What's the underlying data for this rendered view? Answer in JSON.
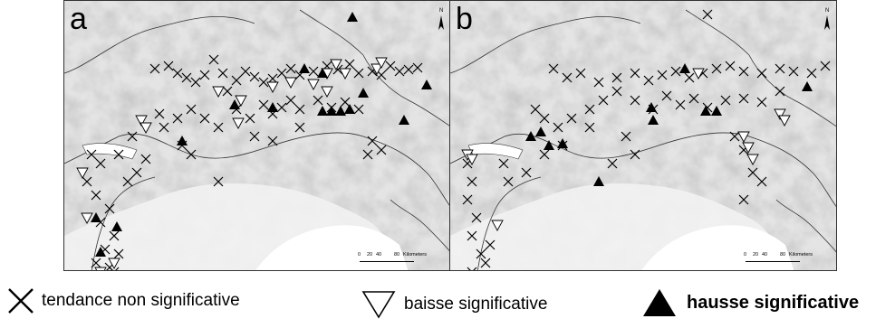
{
  "panels": [
    {
      "id": "a",
      "label": "a"
    },
    {
      "id": "b",
      "label": "b"
    }
  ],
  "north_label": "N",
  "scale": {
    "ticks": [
      "0",
      "20",
      "40",
      "80"
    ],
    "unit": "Kilometers"
  },
  "legend": {
    "nonsig": "tendance non significative",
    "down": "baisse significative",
    "up": "hausse significative"
  },
  "colors": {
    "terrain_light": "#d9d9d9",
    "terrain_dark": "#a8a8a8",
    "sea": "#ffffff",
    "marker": "#000000"
  },
  "markers": {
    "a": {
      "x": [
        [
          170,
          75
        ],
        [
          185,
          72
        ],
        [
          195,
          80
        ],
        [
          205,
          85
        ],
        [
          215,
          90
        ],
        [
          225,
          82
        ],
        [
          245,
          80
        ],
        [
          260,
          88
        ],
        [
          270,
          78
        ],
        [
          280,
          84
        ],
        [
          290,
          90
        ],
        [
          300,
          86
        ],
        [
          310,
          80
        ],
        [
          320,
          75
        ],
        [
          330,
          82
        ],
        [
          345,
          78
        ],
        [
          360,
          72
        ],
        [
          372,
          76
        ],
        [
          385,
          70
        ],
        [
          395,
          80
        ],
        [
          410,
          78
        ],
        [
          420,
          82
        ],
        [
          430,
          72
        ],
        [
          440,
          78
        ],
        [
          450,
          76
        ],
        [
          460,
          74
        ],
        [
          235,
          65
        ],
        [
          250,
          100
        ],
        [
          175,
          125
        ],
        [
          180,
          140
        ],
        [
          195,
          130
        ],
        [
          210,
          120
        ],
        [
          225,
          130
        ],
        [
          240,
          140
        ],
        [
          260,
          120
        ],
        [
          275,
          130
        ],
        [
          290,
          115
        ],
        [
          300,
          125
        ],
        [
          310,
          118
        ],
        [
          320,
          110
        ],
        [
          330,
          120
        ],
        [
          350,
          110
        ],
        [
          365,
          118
        ],
        [
          380,
          112
        ],
        [
          395,
          120
        ],
        [
          410,
          155
        ],
        [
          420,
          165
        ],
        [
          405,
          170
        ],
        [
          100,
          170
        ],
        [
          110,
          180
        ],
        [
          95,
          200
        ],
        [
          105,
          215
        ],
        [
          120,
          230
        ],
        [
          110,
          245
        ],
        [
          125,
          260
        ],
        [
          115,
          275
        ],
        [
          105,
          290
        ],
        [
          120,
          295
        ],
        [
          130,
          280
        ],
        [
          140,
          200
        ],
        [
          150,
          190
        ],
        [
          160,
          175
        ],
        [
          130,
          170
        ],
        [
          145,
          150
        ],
        [
          200,
          160
        ],
        [
          210,
          170
        ],
        [
          240,
          200
        ],
        [
          280,
          150
        ],
        [
          300,
          155
        ],
        [
          330,
          140
        ],
        [
          125,
          300
        ]
      ],
      "down": [
        [
          155,
          132
        ],
        [
          160,
          140
        ],
        [
          240,
          100
        ],
        [
          265,
          110
        ],
        [
          300,
          95
        ],
        [
          320,
          90
        ],
        [
          345,
          92
        ],
        [
          360,
          80
        ],
        [
          370,
          70
        ],
        [
          380,
          80
        ],
        [
          360,
          100
        ],
        [
          415,
          75
        ],
        [
          420,
          68
        ],
        [
          90,
          190
        ],
        [
          95,
          240
        ],
        [
          110,
          300
        ],
        [
          125,
          290
        ],
        [
          262,
          135
        ]
      ],
      "up": [
        [
          335,
          75
        ],
        [
          355,
          80
        ],
        [
          400,
          102
        ],
        [
          470,
          93
        ],
        [
          258,
          115
        ],
        [
          300,
          118
        ],
        [
          355,
          122
        ],
        [
          365,
          122
        ],
        [
          375,
          122
        ],
        [
          385,
          120
        ],
        [
          445,
          132
        ],
        [
          200,
          155
        ],
        [
          105,
          240
        ],
        [
          128,
          250
        ],
        [
          110,
          278
        ],
        [
          388,
          18
        ]
      ]
    },
    "b": {
      "x": [
        [
          610,
          75
        ],
        [
          625,
          85
        ],
        [
          640,
          80
        ],
        [
          660,
          90
        ],
        [
          680,
          85
        ],
        [
          700,
          80
        ],
        [
          715,
          88
        ],
        [
          730,
          82
        ],
        [
          745,
          78
        ],
        [
          760,
          85
        ],
        [
          775,
          80
        ],
        [
          790,
          75
        ],
        [
          805,
          72
        ],
        [
          820,
          78
        ],
        [
          840,
          80
        ],
        [
          860,
          75
        ],
        [
          875,
          78
        ],
        [
          895,
          80
        ],
        [
          910,
          72
        ],
        [
          780,
          15
        ],
        [
          590,
          120
        ],
        [
          600,
          130
        ],
        [
          615,
          140
        ],
        [
          630,
          130
        ],
        [
          650,
          120
        ],
        [
          665,
          110
        ],
        [
          680,
          100
        ],
        [
          700,
          110
        ],
        [
          720,
          120
        ],
        [
          735,
          105
        ],
        [
          750,
          115
        ],
        [
          765,
          108
        ],
        [
          780,
          118
        ],
        [
          800,
          110
        ],
        [
          820,
          108
        ],
        [
          840,
          112
        ],
        [
          810,
          150
        ],
        [
          820,
          165
        ],
        [
          830,
          190
        ],
        [
          840,
          200
        ],
        [
          820,
          220
        ],
        [
          515,
          180
        ],
        [
          520,
          200
        ],
        [
          515,
          220
        ],
        [
          525,
          240
        ],
        [
          520,
          260
        ],
        [
          530,
          280
        ],
        [
          520,
          300
        ],
        [
          535,
          290
        ],
        [
          540,
          270
        ],
        [
          555,
          180
        ],
        [
          560,
          200
        ],
        [
          580,
          190
        ],
        [
          600,
          170
        ],
        [
          620,
          160
        ],
        [
          650,
          140
        ],
        [
          690,
          150
        ],
        [
          700,
          170
        ],
        [
          675,
          180
        ],
        [
          860,
          100
        ]
      ],
      "down": [
        [
          770,
          80
        ],
        [
          860,
          125
        ],
        [
          865,
          132
        ],
        [
          820,
          150
        ],
        [
          825,
          162
        ],
        [
          830,
          175
        ],
        [
          515,
          170
        ],
        [
          520,
          175
        ],
        [
          548,
          248
        ]
      ],
      "up": [
        [
          585,
          150
        ],
        [
          596,
          145
        ],
        [
          605,
          160
        ],
        [
          620,
          158
        ],
        [
          718,
          118
        ],
        [
          720,
          132
        ],
        [
          778,
          122
        ],
        [
          790,
          122
        ],
        [
          755,
          75
        ],
        [
          890,
          95
        ],
        [
          660,
          200
        ]
      ]
    }
  }
}
